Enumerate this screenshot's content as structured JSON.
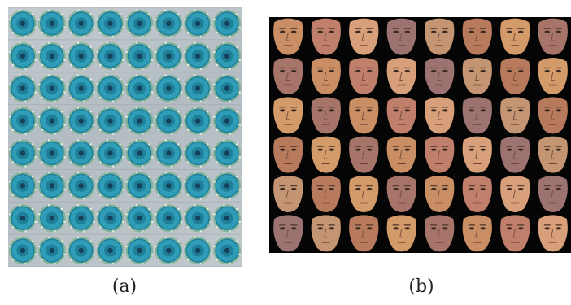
{
  "figure": {
    "panel_a": {
      "caption": "(a)",
      "grid": {
        "rows": 8,
        "cols": 8
      },
      "colors": {
        "board": "#b9c2c7",
        "ring": "#2f9db8",
        "ring_dark": "#1f7f98",
        "center": "#15425a",
        "pcb": "#5aa779"
      }
    },
    "panel_b": {
      "caption": "(b)",
      "grid": {
        "rows": 6,
        "cols": 8
      },
      "background": "#050505",
      "skin_tones": [
        "#c98e63",
        "#b87a5c",
        "#d8a07a",
        "#a77469",
        "#c49573",
        "#bf7f6b",
        "#d39a6a",
        "#9d7372"
      ]
    }
  }
}
